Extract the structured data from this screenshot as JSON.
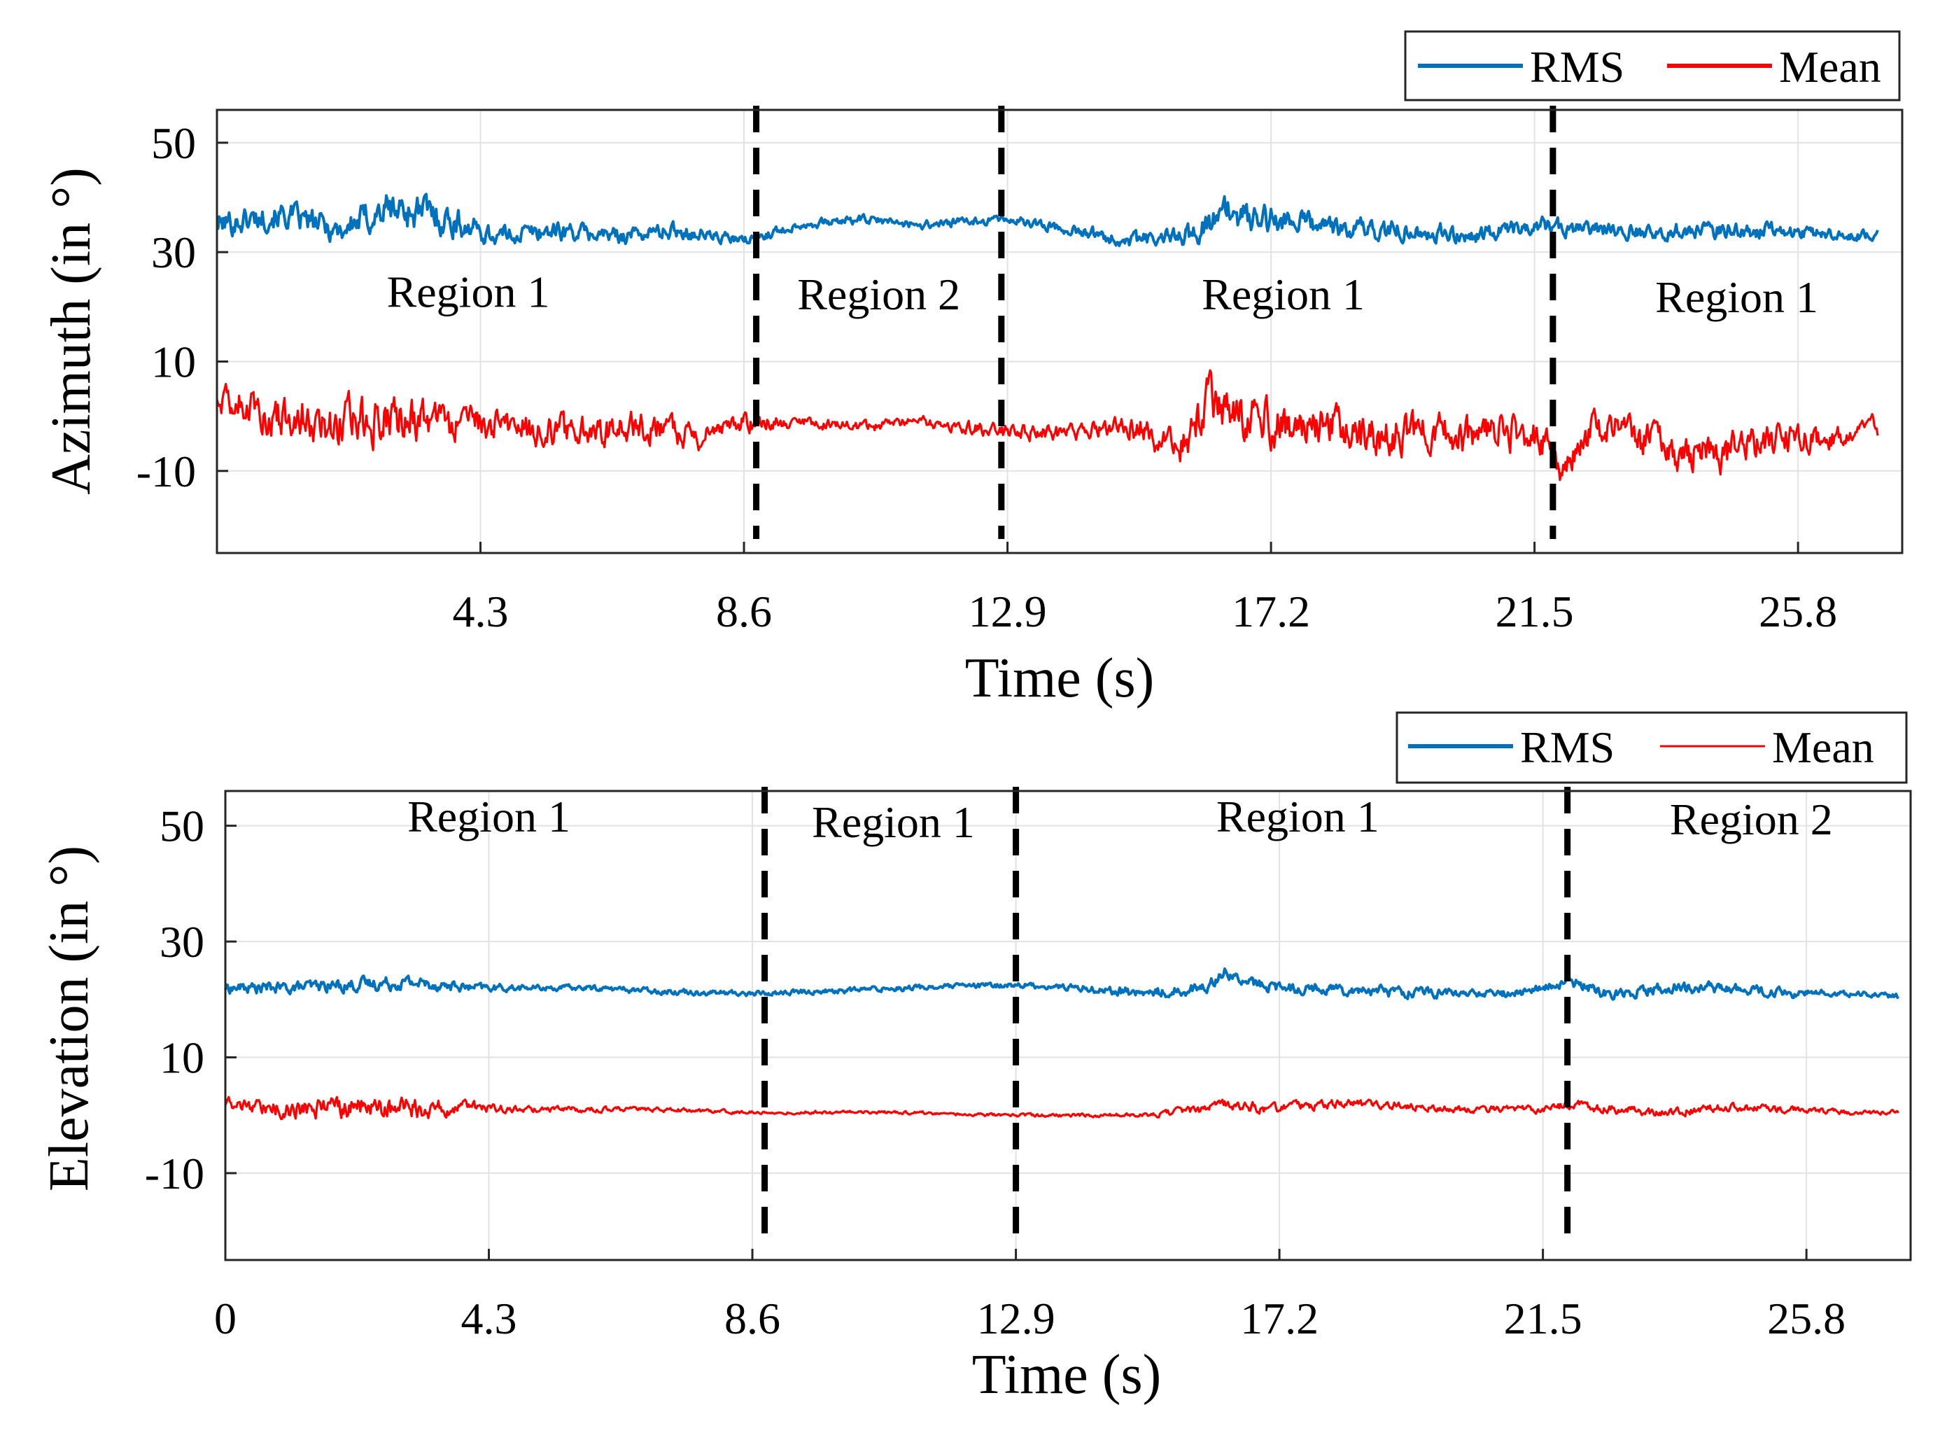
{
  "chart_data": [
    {
      "type": "line",
      "title": "",
      "xlabel": "Time (s)",
      "ylabel": "Azimuth (in °)",
      "xlim": [
        0,
        27.5
      ],
      "ylim": [
        -25,
        56
      ],
      "xticks": [
        4.3,
        8.6,
        12.9,
        17.2,
        21.5,
        25.8
      ],
      "xtick_labels": [
        "4.3",
        "8.6",
        "12.9",
        "17.2",
        "21.5",
        "25.8"
      ],
      "yticks": [
        50,
        30,
        10,
        -10
      ],
      "ytick_labels": [
        "50",
        "30",
        "10",
        "-10"
      ],
      "grid": true,
      "legend": {
        "placement": "top-right",
        "entries": [
          "RMS",
          "Mean"
        ]
      },
      "series": [
        {
          "name": "RMS",
          "color": "#0072BD",
          "x": [
            0,
            1,
            2,
            2.8,
            3.5,
            4.5,
            5.5,
            6.5,
            7.5,
            8.6,
            9.5,
            10.5,
            11.5,
            12.9,
            14,
            15,
            15.8,
            16.5,
            17.2,
            18,
            18.7,
            19.5,
            20.5,
            21.5,
            22.5,
            23.5,
            24.5,
            25.5,
            26.5,
            27.1
          ],
          "y": [
            35,
            37,
            34,
            38,
            37,
            33,
            34,
            33,
            34,
            32,
            35,
            36,
            35,
            36,
            34,
            32,
            33,
            37,
            36,
            35,
            34,
            34,
            33,
            35,
            34,
            34,
            34,
            34,
            33,
            33
          ],
          "noise": [
            2.5,
            2.5,
            2.5,
            3.5,
            3.5,
            1.8,
            1.8,
            1.5,
            1.5,
            1,
            0.8,
            0.8,
            0.8,
            0.8,
            1,
            1.5,
            2,
            3,
            2.5,
            2,
            2,
            1.8,
            1.5,
            1.5,
            1.5,
            1.5,
            1.5,
            1.5,
            1,
            1
          ]
        },
        {
          "name": "Mean",
          "color": "#FF0000",
          "x": [
            0,
            1,
            2,
            3,
            4,
            5,
            6,
            7,
            7.8,
            8.6,
            9.5,
            10.5,
            11.5,
            12.9,
            14,
            15,
            15.8,
            16.2,
            17.2,
            18,
            18.7,
            19.5,
            20.5,
            21.5,
            22,
            22.5,
            23.5,
            24.5,
            25.5,
            26.5,
            27.1
          ],
          "y": [
            4,
            0,
            -1,
            -1,
            -2,
            -2,
            -3,
            -2,
            -4,
            -1,
            -1,
            -2,
            -1,
            -3,
            -3,
            -2,
            -5,
            4,
            -2,
            -1,
            -4,
            -3,
            -4,
            -3,
            -10,
            -1,
            -6,
            -7,
            -4,
            -4,
            -2
          ],
          "noise": [
            3,
            4,
            4.5,
            4.5,
            3.5,
            3,
            3,
            3,
            2.5,
            2,
            1,
            1,
            1,
            1.5,
            1.5,
            2.5,
            4,
            5,
            4.5,
            4,
            4,
            3.5,
            3.5,
            3.5,
            3,
            3.5,
            3.5,
            3.5,
            3,
            2,
            2
          ]
        }
      ],
      "boundaries_x": [
        8.8,
        12.8,
        21.8
      ],
      "annotations": [
        {
          "text": "Region 1",
          "x": 4.1,
          "y": 20
        },
        {
          "text": "Region 2",
          "x": 10.8,
          "y": 19.5
        },
        {
          "text": "Region 1",
          "x": 17.4,
          "y": 19.5
        },
        {
          "text": "Region 1",
          "x": 24.8,
          "y": 19
        }
      ]
    },
    {
      "type": "line",
      "title": "",
      "xlabel": "Time (s)",
      "ylabel": "Elevation (in °)",
      "xlim": [
        0,
        27.5
      ],
      "ylim": [
        -25,
        56
      ],
      "xticks": [
        0,
        4.3,
        8.6,
        12.9,
        17.2,
        21.5,
        25.8
      ],
      "xtick_labels": [
        "0",
        "4.3",
        "8.6",
        "12.9",
        "17.2",
        "21.5",
        "25.8"
      ],
      "yticks": [
        50,
        30,
        10,
        -10
      ],
      "ytick_labels": [
        "50",
        "30",
        "10",
        "-10"
      ],
      "grid": true,
      "legend": {
        "placement": "top-right",
        "entries": [
          "RMS",
          "Mean"
        ]
      },
      "series": [
        {
          "name": "RMS",
          "color": "#0072BD",
          "x": [
            0,
            1,
            2,
            3,
            4,
            5,
            6,
            7,
            8.6,
            10,
            11,
            12.9,
            14,
            15,
            16,
            16.3,
            16.6,
            17.2,
            18,
            19,
            20,
            21,
            21.5,
            22,
            22.5,
            23.5,
            24.5,
            25.5,
            26.5,
            27.3
          ],
          "y": [
            22,
            22,
            22.5,
            23,
            22,
            22,
            22,
            21.5,
            21,
            21.5,
            22,
            22.5,
            22,
            21,
            22,
            25,
            23,
            22,
            22,
            21.5,
            21,
            21,
            22,
            23,
            21,
            22,
            22,
            21,
            21,
            20.5
          ],
          "noise": [
            1,
            1,
            1.2,
            1.2,
            0.8,
            0.5,
            0.5,
            0.5,
            0.5,
            0.5,
            0.5,
            0.5,
            0.6,
            1,
            1,
            1,
            1,
            1,
            1,
            1,
            0.8,
            0.8,
            0.8,
            1,
            1,
            1,
            1,
            0.8,
            0.5,
            0.5
          ]
        },
        {
          "name": "Mean",
          "color": "#FF0000",
          "x": [
            0,
            1,
            2,
            3,
            4,
            5,
            6,
            7,
            8.6,
            10,
            11,
            12.9,
            14,
            15,
            16,
            16.5,
            17,
            18,
            19,
            20,
            21,
            21.5,
            22,
            22.5,
            23.5,
            24.5,
            25.5,
            26.5,
            27.3
          ],
          "y": [
            2,
            1,
            1.5,
            1,
            1.5,
            1,
            1,
            1,
            0.5,
            0.5,
            0.5,
            0,
            0,
            0,
            1,
            2,
            1,
            2,
            2,
            1,
            1,
            1,
            2,
            1,
            0.5,
            1.5,
            1,
            0.5,
            0.5
          ],
          "noise": [
            1,
            1.5,
            2,
            2,
            1,
            0.5,
            0.5,
            0.4,
            0.3,
            0.3,
            0.3,
            0.3,
            0.3,
            0.4,
            0.8,
            1,
            0.8,
            0.8,
            0.8,
            0.6,
            0.6,
            0.6,
            0.8,
            0.8,
            0.8,
            0.8,
            0.6,
            0.4,
            0.4
          ]
        }
      ],
      "boundaries_x": [
        8.8,
        12.9,
        21.9
      ],
      "annotations": [
        {
          "text": "Region 1",
          "x": 4.3,
          "y": 49
        },
        {
          "text": "Region 1",
          "x": 10.9,
          "y": 48
        },
        {
          "text": "Region 1",
          "x": 17.5,
          "y": 49
        },
        {
          "text": "Region 2",
          "x": 24.9,
          "y": 48.5
        }
      ]
    }
  ]
}
